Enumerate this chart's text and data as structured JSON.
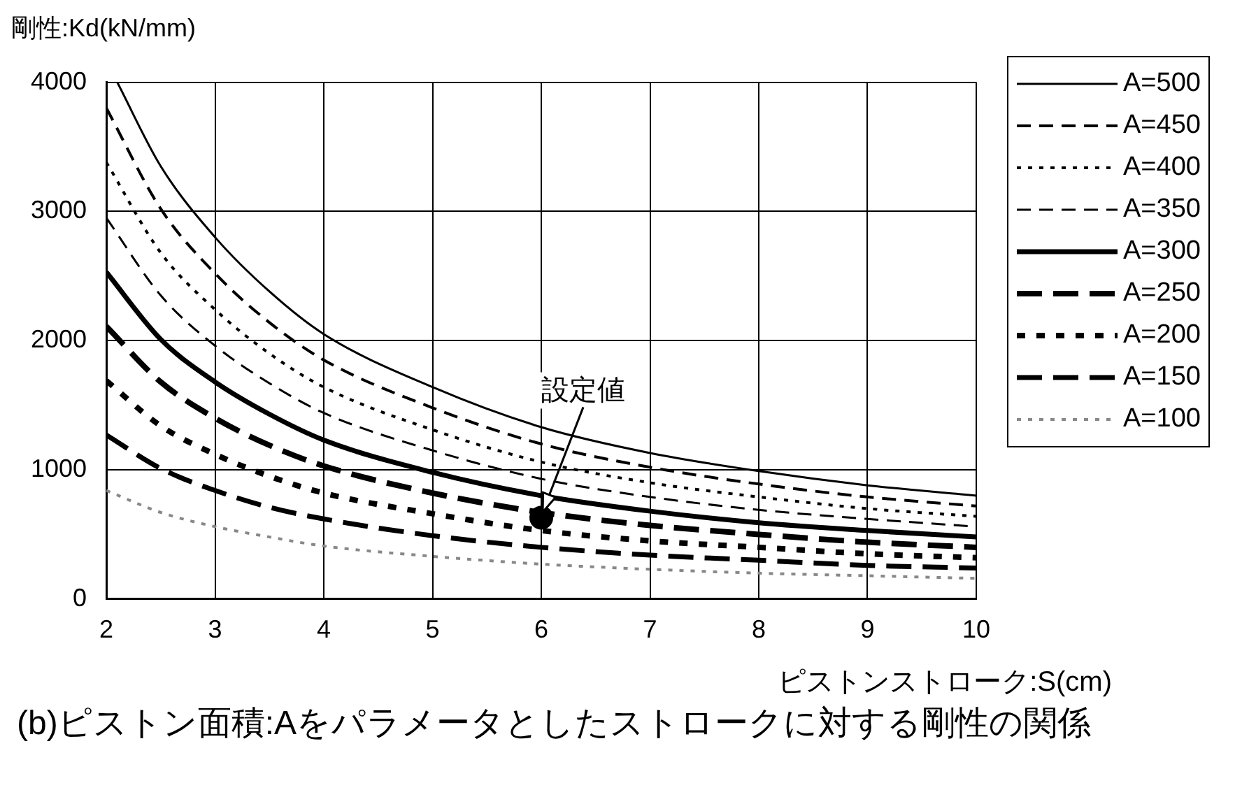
{
  "chart_data": {
    "type": "line",
    "ylabel": "剛性:Kd(kN/mm)",
    "xlabel": "ピストンストローク:S(cm)",
    "x": [
      2,
      2.5,
      3,
      3.5,
      4,
      5,
      6,
      7,
      8,
      9,
      10
    ],
    "xlim": [
      2,
      10
    ],
    "xticks": [
      2,
      3,
      4,
      5,
      6,
      7,
      8,
      9,
      10
    ],
    "ylim": [
      0,
      4000
    ],
    "yticks": [
      0,
      1000,
      2000,
      3000,
      4000
    ],
    "grid": true,
    "legend": "right",
    "marker": "none",
    "series": [
      {
        "name": "A=500",
        "color": "#000000",
        "line_style": "solid",
        "x": [
          2.1,
          2.5,
          3,
          3.5,
          4,
          5,
          6,
          7,
          8,
          9,
          10
        ],
        "values": [
          4000,
          3350,
          2800,
          2380,
          2050,
          1640,
          1330,
          1130,
          990,
          880,
          800
        ]
      },
      {
        "name": "A=450",
        "color": "#000000",
        "line_style": "dashed",
        "values": [
          3800,
          3020,
          2520,
          2140,
          1850,
          1480,
          1200,
          1020,
          890,
          790,
          720
        ]
      },
      {
        "name": "A=400",
        "color": "#000000",
        "line_style": "dotted",
        "values": [
          3380,
          2680,
          2240,
          1900,
          1640,
          1310,
          1060,
          900,
          790,
          700,
          640
        ]
      },
      {
        "name": "A=350",
        "color": "#000000",
        "line_style": "dashed",
        "values": [
          2950,
          2350,
          1960,
          1670,
          1440,
          1150,
          930,
          790,
          690,
          620,
          560
        ]
      },
      {
        "name": "A=300",
        "color": "#000000",
        "line_style": "solid",
        "values": [
          2530,
          2010,
          1680,
          1430,
          1230,
          980,
          800,
          680,
          590,
          530,
          480
        ]
      },
      {
        "name": "A=250",
        "color": "#000000",
        "line_style": "dashed",
        "values": [
          2110,
          1680,
          1400,
          1190,
          1030,
          820,
          670,
          570,
          500,
          440,
          400
        ]
      },
      {
        "name": "A=200",
        "color": "#000000",
        "line_style": "dotted",
        "values": [
          1690,
          1340,
          1120,
          950,
          820,
          660,
          530,
          450,
          400,
          350,
          320
        ]
      },
      {
        "name": "A=150",
        "color": "#000000",
        "line_style": "dashed",
        "values": [
          1270,
          1010,
          840,
          710,
          620,
          490,
          400,
          340,
          300,
          260,
          240
        ]
      },
      {
        "name": "A=100",
        "color": "#888888",
        "line_style": "dotted",
        "values": [
          840,
          670,
          560,
          480,
          410,
          330,
          270,
          230,
          200,
          180,
          160
        ]
      },
      {
        "type": "scatter",
        "marker": "circle",
        "color": "#000000",
        "x": [
          6
        ],
        "values": [
          630
        ]
      }
    ],
    "annotations": [
      {
        "text": "設定値",
        "x": 6,
        "y": 630
      },
      "(b)ピストン面積:Aをパラメータとしたストロークに対する剛性の関係"
    ]
  }
}
